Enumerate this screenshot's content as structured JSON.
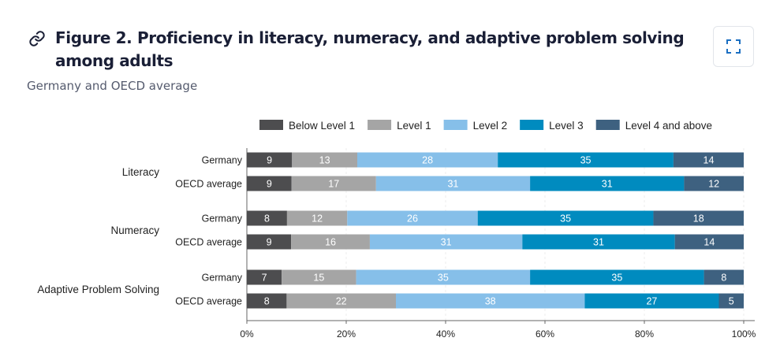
{
  "header": {
    "title": "Figure 2. Proficiency in literacy, numeracy, and adaptive problem solving among adults",
    "subtitle": "Germany and OECD average",
    "link_icon": "link-icon",
    "expand_icon": "expand-icon"
  },
  "chart_data": {
    "type": "bar",
    "orientation": "horizontal",
    "stacked": true,
    "title": "",
    "xlabel": "",
    "ylabel": "",
    "xlim": [
      0,
      100
    ],
    "x_ticks": [
      "0%",
      "20%",
      "40%",
      "60%",
      "80%",
      "100%"
    ],
    "grid": true,
    "legend_position": "top",
    "groups": [
      {
        "label": "Literacy",
        "categories": [
          "Germany",
          "OECD average"
        ]
      },
      {
        "label": "Numeracy",
        "categories": [
          "Germany",
          "OECD average"
        ]
      },
      {
        "label": "Adaptive Problem Solving",
        "categories": [
          "Germany",
          "OECD average"
        ]
      }
    ],
    "series": [
      {
        "name": "Below Level 1",
        "color": "#4d4d4f",
        "values": [
          9,
          9,
          8,
          9,
          7,
          8
        ]
      },
      {
        "name": "Level 1",
        "color": "#a5a5a5",
        "values": [
          13,
          17,
          12,
          16,
          15,
          22
        ]
      },
      {
        "name": "Level 2",
        "color": "#86bfe9",
        "values": [
          28,
          31,
          26,
          31,
          35,
          38
        ]
      },
      {
        "name": "Level 3",
        "color": "#008bbf",
        "values": [
          35,
          31,
          35,
          31,
          35,
          27
        ]
      },
      {
        "name": "Level 4 and above",
        "color": "#3e6180",
        "values": [
          14,
          12,
          18,
          14,
          8,
          5
        ]
      }
    ]
  }
}
